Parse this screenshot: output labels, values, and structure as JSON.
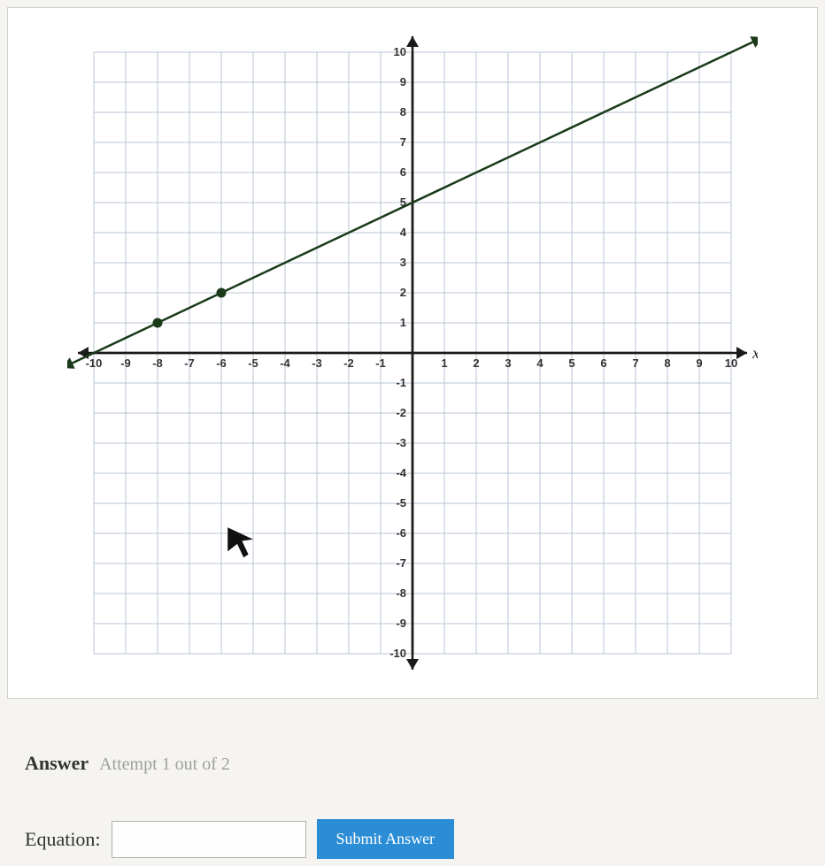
{
  "graph": {
    "xlim": [
      -10,
      10
    ],
    "ylim": [
      -10,
      10
    ],
    "tick_step": 1,
    "grid_color": "#b8c5d6",
    "axis_color": "#1a1a1a",
    "line_color": "#1a3a1a",
    "point_color": "#1a3a1a",
    "background_color": "#ffffff",
    "x_axis_label": "x",
    "line": {
      "slope": 0.5,
      "intercept": 5,
      "x_start": -11,
      "x_end": 11
    },
    "points": [
      {
        "x": -8,
        "y": 1
      },
      {
        "x": -6,
        "y": 2
      }
    ],
    "x_ticks": [
      -10,
      -9,
      -8,
      -7,
      -6,
      -5,
      -4,
      -3,
      -2,
      -1,
      1,
      2,
      3,
      4,
      5,
      6,
      7,
      8,
      9,
      10
    ],
    "y_ticks": [
      -10,
      -9,
      -8,
      -7,
      -6,
      -5,
      -4,
      -3,
      -2,
      -1,
      1,
      2,
      3,
      4,
      5,
      6,
      7,
      8,
      9,
      10
    ],
    "tick_fontsize": 13,
    "axis_label_fontsize": 18
  },
  "answer": {
    "heading": "Answer",
    "attempt_text": "Attempt 1 out of 2"
  },
  "equation": {
    "label": "Equation:",
    "value": ""
  },
  "submit": {
    "label": "Submit Answer"
  }
}
